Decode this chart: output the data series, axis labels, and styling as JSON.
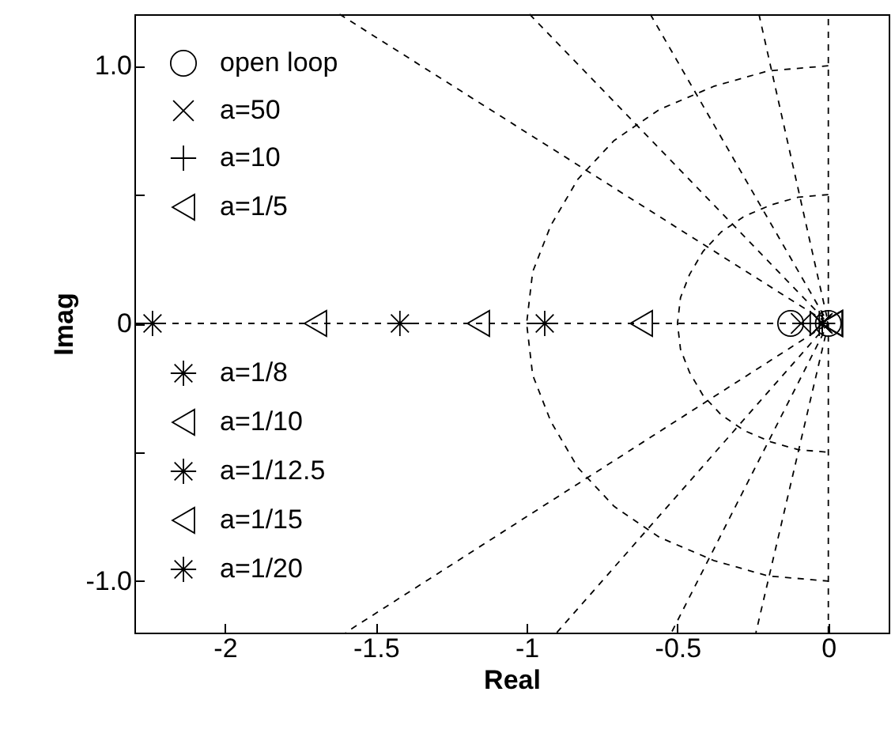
{
  "chart_data": {
    "type": "scatter",
    "xlabel": "Real",
    "ylabel": "Imag",
    "xlim": [
      -2.3,
      0.2
    ],
    "xticks": [
      -2,
      -1.5,
      -1,
      -0.5,
      0
    ],
    "ylim": [
      -1.2,
      1.2
    ],
    "yticks": [
      {
        "value": -1,
        "label": "-1.0"
      },
      {
        "value": -0.5,
        "label": null
      },
      0,
      {
        "value": 0.5,
        "label": null
      },
      {
        "value": 1,
        "label": "1.0"
      }
    ],
    "legend": "left",
    "series": [
      {
        "type": "line",
        "line_style": "dashed",
        "color": "#000000",
        "x": [
          -2.3,
          0
        ],
        "values": [
          0,
          0
        ]
      },
      {
        "type": "line",
        "line_style": "dashed",
        "color": "#000000",
        "x": [
          0,
          0
        ],
        "values": [
          -1.2,
          1.2
        ]
      },
      {
        "type": "line",
        "line_style": "dashed",
        "color": "#000000",
        "x": [
          -1.62,
          0,
          -1.6
        ],
        "values": [
          1.2,
          0,
          -1.2
        ]
      },
      {
        "type": "line",
        "line_style": "dashed",
        "color": "#000000",
        "x": [
          -0.99,
          0,
          -0.9
        ],
        "values": [
          1.2,
          0,
          -1.2
        ]
      },
      {
        "type": "line",
        "line_style": "dashed",
        "color": "#000000",
        "x": [
          -0.59,
          0,
          -0.52
        ],
        "values": [
          1.2,
          0,
          -1.2
        ]
      },
      {
        "type": "line",
        "line_style": "dashed",
        "color": "#000000",
        "x": [
          -0.23,
          0,
          -0.24
        ],
        "values": [
          1.2,
          0,
          -1.2
        ]
      },
      {
        "type": "line",
        "line_style": "dashed",
        "color": "#000000",
        "x": [
          0,
          -0.2,
          -0.38,
          -0.56,
          -0.71,
          -0.83,
          -0.92,
          -0.98,
          -1,
          -0.98,
          -0.92,
          -0.83,
          -0.71,
          -0.56,
          -0.38,
          -0.2,
          0
        ],
        "values": [
          1,
          0.98,
          0.92,
          0.83,
          0.71,
          0.56,
          0.38,
          0.2,
          0,
          -0.2,
          -0.38,
          -0.56,
          -0.71,
          -0.83,
          -0.92,
          -0.98,
          -1
        ]
      },
      {
        "type": "line",
        "line_style": "dashed",
        "color": "#000000",
        "x": [
          0,
          -0.1,
          -0.19,
          -0.28,
          -0.355,
          -0.415,
          -0.46,
          -0.49,
          -0.5,
          -0.49,
          -0.46,
          -0.415,
          -0.355,
          -0.28,
          -0.19,
          -0.1,
          0
        ],
        "values": [
          0.5,
          0.49,
          0.46,
          0.415,
          0.355,
          0.28,
          0.19,
          0.1,
          0,
          -0.1,
          -0.19,
          -0.28,
          -0.355,
          -0.415,
          -0.46,
          -0.49,
          -0.5
        ]
      },
      {
        "name": "open loop",
        "type": "scatter",
        "marker": "circle",
        "color": "#000000",
        "x": [
          -0.125,
          0
        ],
        "values": [
          0,
          0
        ]
      },
      {
        "name": "a=50",
        "type": "scatter",
        "marker": "x",
        "color": "#000000",
        "x": [
          -0.09,
          -0.02
        ],
        "values": [
          0,
          0
        ]
      },
      {
        "name": "a=10",
        "type": "scatter",
        "marker": "plus",
        "color": "#000000",
        "x": [
          -0.06,
          -0.03
        ],
        "values": [
          0,
          0
        ]
      },
      {
        "name": "a=1/5",
        "type": "scatter",
        "marker": "triangle",
        "color": "#000000",
        "x": [
          -0.62,
          0.01
        ],
        "values": [
          0,
          0
        ]
      },
      {
        "name": "a=1/8",
        "type": "scatter",
        "marker": "cross",
        "color": "#000000",
        "x": [
          -0.94,
          -0.02
        ],
        "values": [
          0,
          0
        ]
      },
      {
        "name": "a=1/10",
        "type": "scatter",
        "marker": "triangle",
        "color": "#000000",
        "x": [
          -1.16,
          0.01
        ],
        "values": [
          0,
          0
        ]
      },
      {
        "name": "a=1/12.5",
        "type": "scatter",
        "marker": "cross",
        "color": "#000000",
        "x": [
          -1.42,
          -0.02
        ],
        "values": [
          0,
          0
        ]
      },
      {
        "name": "a=1/15",
        "type": "scatter",
        "marker": "triangle",
        "color": "#000000",
        "x": [
          -1.7,
          0.01
        ],
        "values": [
          0,
          0
        ]
      },
      {
        "name": "a=1/20",
        "type": "scatter",
        "marker": "cross",
        "color": "#000000",
        "x": [
          -2.24,
          -0.02
        ],
        "values": [
          0,
          0
        ]
      }
    ]
  }
}
